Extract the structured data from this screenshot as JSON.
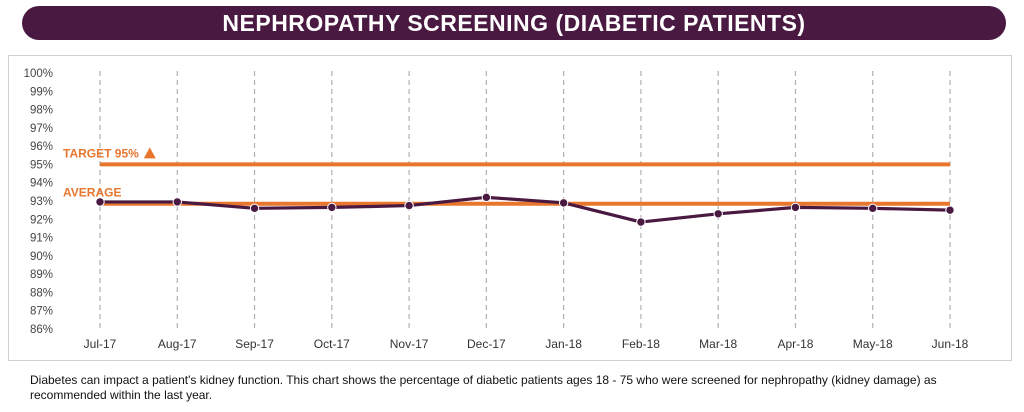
{
  "header": {
    "title": "NEPHROPATHY SCREENING (DIABETIC PATIENTS)"
  },
  "caption": "Diabetes can impact a patient's kidney function.  This chart shows the percentage of diabetic patients ages 18 - 75 who were screened for nephropathy (kidney damage) as recommended within the last year.",
  "colors": {
    "title_bg": "#4a1942",
    "series": "#4a1942",
    "reference": "#e8762d",
    "grid": "#b0b0b0"
  },
  "chart_data": {
    "type": "line",
    "title": "NEPHROPATHY SCREENING (DIABETIC PATIENTS)",
    "categories": [
      "Jul-17",
      "Aug-17",
      "Sep-17",
      "Oct-17",
      "Nov-17",
      "Dec-17",
      "Jan-18",
      "Feb-18",
      "Mar-18",
      "Apr-18",
      "May-18",
      "Jun-18"
    ],
    "series": [
      {
        "values": [
          92.95,
          92.95,
          92.6,
          92.65,
          92.75,
          93.2,
          92.9,
          91.85,
          92.3,
          92.65,
          92.6,
          92.5
        ]
      }
    ],
    "reference_lines": [
      {
        "label": "TARGET 95%",
        "value": 95,
        "marker": "triangle-up-icon"
      },
      {
        "label": "AVERAGE",
        "value": 92.85
      }
    ],
    "ylim": [
      86,
      100
    ],
    "ytick_step": 1,
    "ytick_format": "percent",
    "vertical_gridlines": "dashed",
    "legend": "none"
  }
}
